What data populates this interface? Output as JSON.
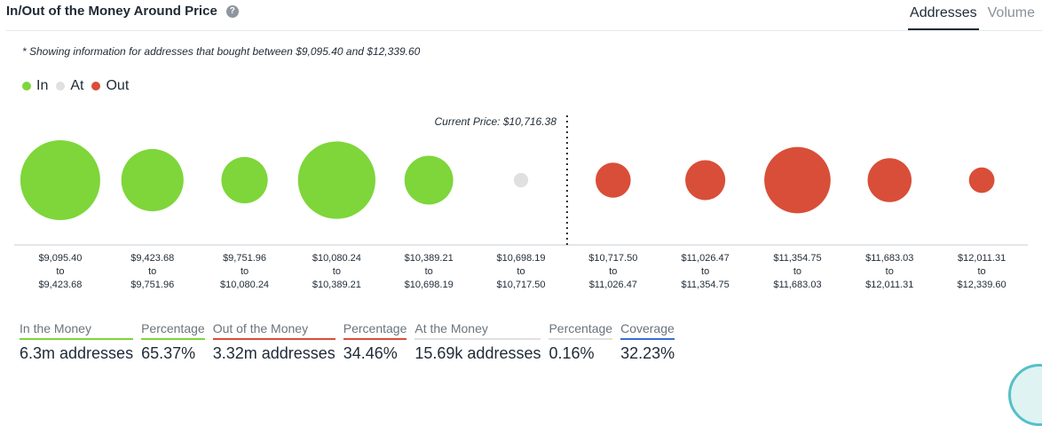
{
  "header": {
    "title": "In/Out of the Money Around Price",
    "help_icon": "question-mark-icon"
  },
  "tabs": [
    {
      "label": "Addresses",
      "active": true
    },
    {
      "label": "Volume",
      "active": false
    }
  ],
  "note": "* Showing information for addresses that bought between $9,095.40 and $12,339.60",
  "legend": [
    {
      "label": "In",
      "color": "#7ed63a"
    },
    {
      "label": "At",
      "color": "#e0e0e0"
    },
    {
      "label": "Out",
      "color": "#d94e38"
    }
  ],
  "chart_data": {
    "type": "scatter",
    "current_price_label": "Current Price: $10,716.38",
    "colors": {
      "in": "#7ed63a",
      "at": "#e0e0e0",
      "out": "#d94e38"
    },
    "buckets": [
      {
        "from": "$9,095.40",
        "to_word": "to",
        "to": "$9,423.68",
        "status": "in",
        "relative_size": 1.0
      },
      {
        "from": "$9,423.68",
        "to_word": "to",
        "to": "$9,751.96",
        "status": "in",
        "relative_size": 0.78
      },
      {
        "from": "$9,751.96",
        "to_word": "to",
        "to": "$10,080.24",
        "status": "in",
        "relative_size": 0.58
      },
      {
        "from": "$10,080.24",
        "to_word": "to",
        "to": "$10,389.21",
        "status": "in",
        "relative_size": 0.97
      },
      {
        "from": "$10,389.21",
        "to_word": "to",
        "to": "$10,698.19",
        "status": "in",
        "relative_size": 0.61
      },
      {
        "from": "$10,698.19",
        "to_word": "to",
        "to": "$10,717.50",
        "status": "at",
        "relative_size": 0.18
      },
      {
        "from": "$10,717.50",
        "to_word": "to",
        "to": "$11,026.47",
        "status": "out",
        "relative_size": 0.44
      },
      {
        "from": "$11,026.47",
        "to_word": "to",
        "to": "$11,354.75",
        "status": "out",
        "relative_size": 0.5
      },
      {
        "from": "$11,354.75",
        "to_word": "to",
        "to": "$11,683.03",
        "status": "out",
        "relative_size": 0.83
      },
      {
        "from": "$11,683.03",
        "to_word": "to",
        "to": "$12,011.31",
        "status": "out",
        "relative_size": 0.55
      },
      {
        "from": "$12,011.31",
        "to_word": "to",
        "to": "$12,339.60",
        "status": "out",
        "relative_size": 0.32
      }
    ]
  },
  "stats": [
    {
      "label": "In the Money",
      "value": "6.3m addresses",
      "color": "#7ed63a"
    },
    {
      "label": "Percentage",
      "value": "65.37%",
      "color": "#7ed63a"
    },
    {
      "label": "Out of the Money",
      "value": "3.32m addresses",
      "color": "#d94e38"
    },
    {
      "label": "Percentage",
      "value": "34.46%",
      "color": "#d94e38"
    },
    {
      "label": "At the Money",
      "value": "15.69k addresses",
      "color": "#e0e0e0"
    },
    {
      "label": "Percentage",
      "value": "0.16%",
      "color": "#e0e0e0"
    },
    {
      "label": "Coverage",
      "value": "32.23%",
      "color": "#3a6fd8"
    }
  ]
}
